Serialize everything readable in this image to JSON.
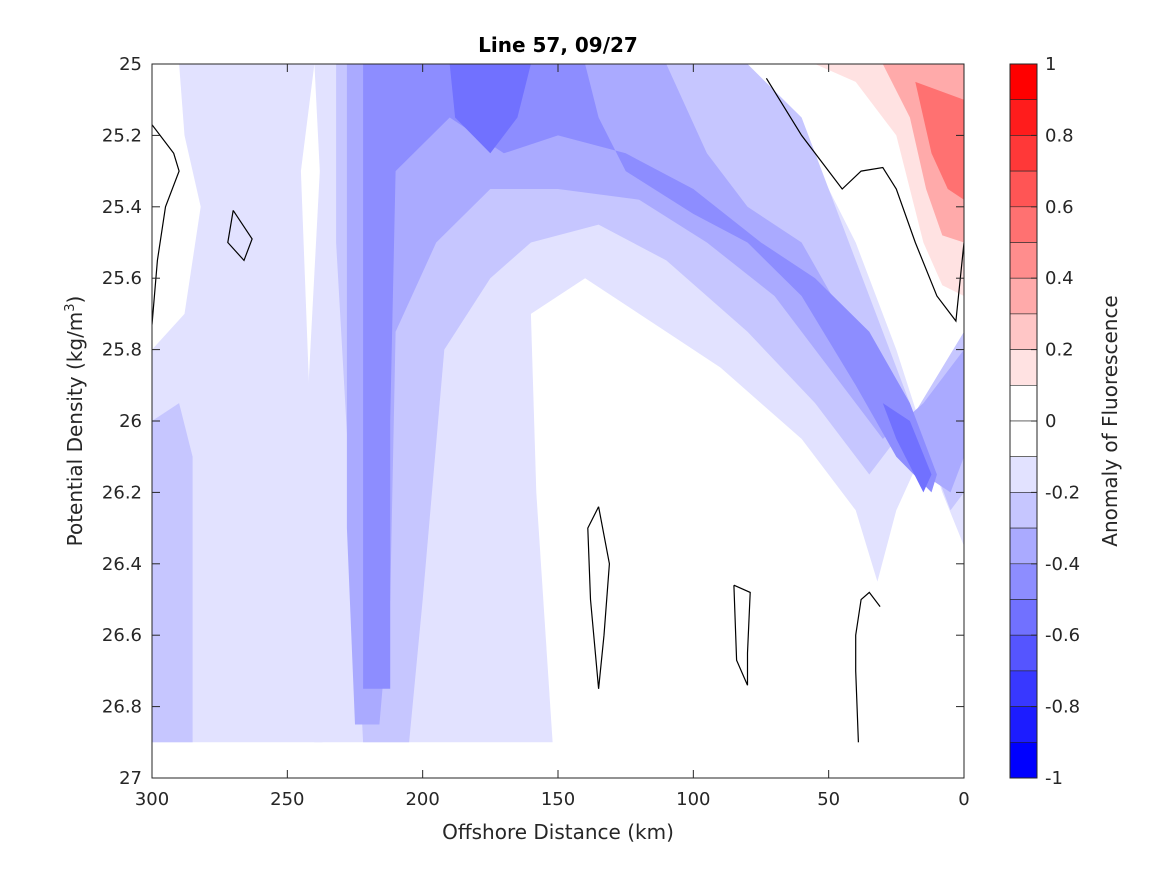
{
  "chart_data": {
    "type": "heatmap",
    "title": "Line 57, 09/27",
    "xlabel": "Offshore Distance (km)",
    "ylabel_prefix": "Potential Density (kg/m",
    "ylabel_sup": "3",
    "ylabel_suffix": ")",
    "xlim": [
      300,
      0
    ],
    "ylim": [
      25,
      27
    ],
    "x_ticks": [
      300,
      250,
      200,
      150,
      100,
      50,
      0
    ],
    "y_ticks": [
      25,
      25.2,
      25.4,
      25.6,
      25.8,
      26,
      26.2,
      26.4,
      26.6,
      26.8,
      27
    ],
    "x_tick_labels": [
      "300",
      "250",
      "200",
      "150",
      "100",
      "50",
      "0"
    ],
    "y_tick_labels": [
      "25",
      "25.2",
      "25.4",
      "25.6",
      "25.8",
      "26",
      "26.2",
      "26.4",
      "26.6",
      "26.8",
      "27"
    ],
    "colorbar": {
      "label": "Anomaly of Fluorescence",
      "range": [
        -1,
        1
      ],
      "ticks": [
        1,
        0.8,
        0.6,
        0.4,
        0.2,
        0,
        -0.2,
        -0.4,
        -0.6,
        -0.8,
        -1
      ],
      "tick_labels": [
        "1",
        "0.8",
        "0.6",
        "0.4",
        "0.2",
        "0",
        "-0.2",
        "-0.4",
        "-0.6",
        "-0.8",
        "-1"
      ],
      "levels": [
        {
          "from": 0.9,
          "to": 1.0,
          "color": "#ff0000"
        },
        {
          "from": 0.8,
          "to": 0.9,
          "color": "#ff1c1c"
        },
        {
          "from": 0.7,
          "to": 0.8,
          "color": "#ff3838"
        },
        {
          "from": 0.6,
          "to": 0.7,
          "color": "#ff5555"
        },
        {
          "from": 0.5,
          "to": 0.6,
          "color": "#ff7171"
        },
        {
          "from": 0.4,
          "to": 0.5,
          "color": "#ff8d8d"
        },
        {
          "from": 0.3,
          "to": 0.4,
          "color": "#ffaaaa"
        },
        {
          "from": 0.2,
          "to": 0.3,
          "color": "#ffc6c6"
        },
        {
          "from": 0.1,
          "to": 0.2,
          "color": "#ffe2e2"
        },
        {
          "from": 0.0,
          "to": 0.1,
          "color": "#ffffff"
        },
        {
          "from": -0.1,
          "to": 0.0,
          "color": "#ffffff"
        },
        {
          "from": -0.2,
          "to": -0.1,
          "color": "#e2e2ff"
        },
        {
          "from": -0.3,
          "to": -0.2,
          "color": "#c6c6ff"
        },
        {
          "from": -0.4,
          "to": -0.3,
          "color": "#aaaaff"
        },
        {
          "from": -0.5,
          "to": -0.4,
          "color": "#8d8dff"
        },
        {
          "from": -0.6,
          "to": -0.5,
          "color": "#7171ff"
        },
        {
          "from": -0.7,
          "to": -0.6,
          "color": "#5555ff"
        },
        {
          "from": -0.8,
          "to": -0.7,
          "color": "#3838ff"
        },
        {
          "from": -0.9,
          "to": -0.8,
          "color": "#1c1cff"
        },
        {
          "from": -1.0,
          "to": -0.9,
          "color": "#0000ff"
        }
      ]
    },
    "field_regions": [
      {
        "name": "near-zero-background",
        "value": 0.0,
        "color": "#ffffff",
        "points": [
          [
            300,
            25
          ],
          [
            0,
            25
          ],
          [
            0,
            26.9
          ],
          [
            300,
            26.9
          ]
        ]
      },
      {
        "name": "negative-band-west",
        "value": -0.15,
        "color": "#e2e2ff",
        "points": [
          [
            290,
            25
          ],
          [
            240,
            25
          ],
          [
            245,
            25.3
          ],
          [
            240,
            26.3
          ],
          [
            237,
            26.9
          ],
          [
            300,
            26.9
          ],
          [
            300,
            25.8
          ],
          [
            288,
            25.7
          ],
          [
            282,
            25.4
          ],
          [
            288,
            25.2
          ]
        ]
      },
      {
        "name": "negative-band-central",
        "value": -0.15,
        "color": "#e2e2ff",
        "points": [
          [
            240,
            25
          ],
          [
            85,
            25
          ],
          [
            60,
            25.2
          ],
          [
            40,
            25.5
          ],
          [
            25,
            25.8
          ],
          [
            8,
            26.2
          ],
          [
            0,
            26.35
          ],
          [
            0,
            25.75
          ],
          [
            10,
            26.0
          ],
          [
            25,
            26.25
          ],
          [
            32,
            26.45
          ],
          [
            40,
            26.25
          ],
          [
            60,
            26.05
          ],
          [
            90,
            25.85
          ],
          [
            110,
            25.75
          ],
          [
            140,
            25.6
          ],
          [
            160,
            25.7
          ],
          [
            158,
            26.2
          ],
          [
            152,
            26.9
          ],
          [
            240,
            26.9
          ],
          [
            245,
            26.3
          ],
          [
            238,
            25.3
          ]
        ]
      },
      {
        "name": "weak-negative-west-lower",
        "value": -0.25,
        "color": "#c6c6ff",
        "points": [
          [
            300,
            26.0
          ],
          [
            290,
            25.95
          ],
          [
            285,
            26.1
          ],
          [
            285,
            26.9
          ],
          [
            300,
            26.9
          ]
        ]
      },
      {
        "name": "weak-negative-shelf-edge",
        "value": -0.25,
        "color": "#c6c6ff",
        "points": [
          [
            232,
            25.0
          ],
          [
            80,
            25.0
          ],
          [
            60,
            25.15
          ],
          [
            45,
            25.45
          ],
          [
            30,
            25.75
          ],
          [
            15,
            26.05
          ],
          [
            5,
            26.25
          ],
          [
            0,
            26.2
          ],
          [
            0,
            25.75
          ],
          [
            20,
            26.0
          ],
          [
            35,
            26.15
          ],
          [
            55,
            25.95
          ],
          [
            80,
            25.75
          ],
          [
            110,
            25.55
          ],
          [
            135,
            25.45
          ],
          [
            160,
            25.5
          ],
          [
            175,
            25.6
          ],
          [
            192,
            25.8
          ],
          [
            200,
            26.5
          ],
          [
            205,
            26.9
          ],
          [
            222,
            26.9
          ],
          [
            226,
            26.3
          ],
          [
            232,
            25.5
          ]
        ]
      },
      {
        "name": "moderate-negative-column",
        "value": -0.35,
        "color": "#aaaaff",
        "points": [
          [
            228,
            25.0
          ],
          [
            110,
            25.0
          ],
          [
            95,
            25.25
          ],
          [
            80,
            25.4
          ],
          [
            60,
            25.5
          ],
          [
            45,
            25.7
          ],
          [
            30,
            25.95
          ],
          [
            15,
            26.15
          ],
          [
            5,
            26.2
          ],
          [
            0,
            26.1
          ],
          [
            0,
            25.8
          ],
          [
            15,
            25.95
          ],
          [
            30,
            26.05
          ],
          [
            50,
            25.85
          ],
          [
            70,
            25.65
          ],
          [
            95,
            25.5
          ],
          [
            120,
            25.38
          ],
          [
            150,
            25.35
          ],
          [
            175,
            25.35
          ],
          [
            195,
            25.5
          ],
          [
            210,
            25.75
          ],
          [
            212,
            26.5
          ],
          [
            216,
            26.85
          ],
          [
            225,
            26.85
          ],
          [
            228,
            26.3
          ]
        ]
      },
      {
        "name": "stronger-negative-column",
        "value": -0.45,
        "color": "#8d8dff",
        "points": [
          [
            222,
            25.0
          ],
          [
            140,
            25.0
          ],
          [
            135,
            25.15
          ],
          [
            125,
            25.3
          ],
          [
            100,
            25.42
          ],
          [
            80,
            25.5
          ],
          [
            60,
            25.65
          ],
          [
            40,
            25.9
          ],
          [
            25,
            26.1
          ],
          [
            12,
            26.2
          ],
          [
            10,
            26.15
          ],
          [
            20,
            25.95
          ],
          [
            35,
            25.75
          ],
          [
            55,
            25.6
          ],
          [
            75,
            25.5
          ],
          [
            100,
            25.35
          ],
          [
            125,
            25.25
          ],
          [
            150,
            25.2
          ],
          [
            170,
            25.25
          ],
          [
            190,
            25.15
          ],
          [
            210,
            25.3
          ],
          [
            212,
            26.0
          ],
          [
            212,
            26.75
          ],
          [
            222,
            26.75
          ]
        ]
      },
      {
        "name": "strong-negative-core",
        "value": -0.55,
        "color": "#7171ff",
        "points": [
          [
            190,
            25.0
          ],
          [
            160,
            25.0
          ],
          [
            165,
            25.15
          ],
          [
            175,
            25.25
          ],
          [
            188,
            25.15
          ]
        ]
      },
      {
        "name": "strong-negative-shelf",
        "value": -0.55,
        "color": "#7171ff",
        "points": [
          [
            30,
            25.95
          ],
          [
            25,
            26.05
          ],
          [
            15,
            26.2
          ],
          [
            12,
            26.15
          ],
          [
            20,
            26.0
          ]
        ]
      },
      {
        "name": "positive-nearshore-weak",
        "value": 0.15,
        "color": "#ffe2e2",
        "points": [
          [
            55,
            25.0
          ],
          [
            0,
            25.0
          ],
          [
            0,
            25.65
          ],
          [
            8,
            25.62
          ],
          [
            15,
            25.5
          ],
          [
            25,
            25.2
          ],
          [
            40,
            25.05
          ]
        ]
      },
      {
        "name": "positive-nearshore-mid",
        "value": 0.35,
        "color": "#ffaaaa",
        "points": [
          [
            30,
            25.0
          ],
          [
            0,
            25.0
          ],
          [
            0,
            25.5
          ],
          [
            8,
            25.48
          ],
          [
            14,
            25.35
          ],
          [
            20,
            25.15
          ]
        ]
      },
      {
        "name": "positive-nearshore-strong",
        "value": 0.55,
        "color": "#ff7171",
        "points": [
          [
            18,
            25.05
          ],
          [
            0,
            25.1
          ],
          [
            0,
            25.38
          ],
          [
            6,
            25.35
          ],
          [
            12,
            25.25
          ]
        ]
      }
    ],
    "zero_contours": [
      {
        "name": "zero-contour-west-edge",
        "points": [
          [
            300,
            25.17
          ],
          [
            292,
            25.25
          ],
          [
            290,
            25.3
          ],
          [
            295,
            25.4
          ],
          [
            298,
            25.55
          ],
          [
            300,
            25.73
          ]
        ]
      },
      {
        "name": "zero-contour-west-loop",
        "points": [
          [
            270,
            25.41
          ],
          [
            263,
            25.49
          ],
          [
            266,
            25.55
          ],
          [
            272,
            25.5
          ],
          [
            270,
            25.41
          ]
        ]
      },
      {
        "name": "zero-contour-mid-loop",
        "points": [
          [
            135,
            26.24
          ],
          [
            131,
            26.4
          ],
          [
            133,
            26.6
          ],
          [
            135,
            26.75
          ],
          [
            138,
            26.5
          ],
          [
            139,
            26.3
          ],
          [
            135,
            26.24
          ]
        ]
      },
      {
        "name": "zero-contour-shelf-loop",
        "points": [
          [
            85,
            26.46
          ],
          [
            79,
            26.48
          ],
          [
            80,
            26.65
          ],
          [
            80,
            26.74
          ],
          [
            84,
            26.67
          ],
          [
            85,
            26.46
          ]
        ]
      },
      {
        "name": "zero-contour-nearshore-curve",
        "points": [
          [
            39,
            26.9
          ],
          [
            40,
            26.7
          ],
          [
            40,
            26.6
          ],
          [
            38,
            26.5
          ],
          [
            35,
            26.48
          ],
          [
            31,
            26.52
          ]
        ]
      },
      {
        "name": "zero-contour-nearshore-upper",
        "points": [
          [
            73,
            25.04
          ],
          [
            60,
            25.2
          ],
          [
            45,
            25.35
          ],
          [
            38,
            25.3
          ],
          [
            30,
            25.29
          ],
          [
            25,
            25.35
          ],
          [
            18,
            25.5
          ],
          [
            10,
            25.65
          ],
          [
            3,
            25.72
          ],
          [
            0,
            25.5
          ]
        ]
      }
    ]
  }
}
